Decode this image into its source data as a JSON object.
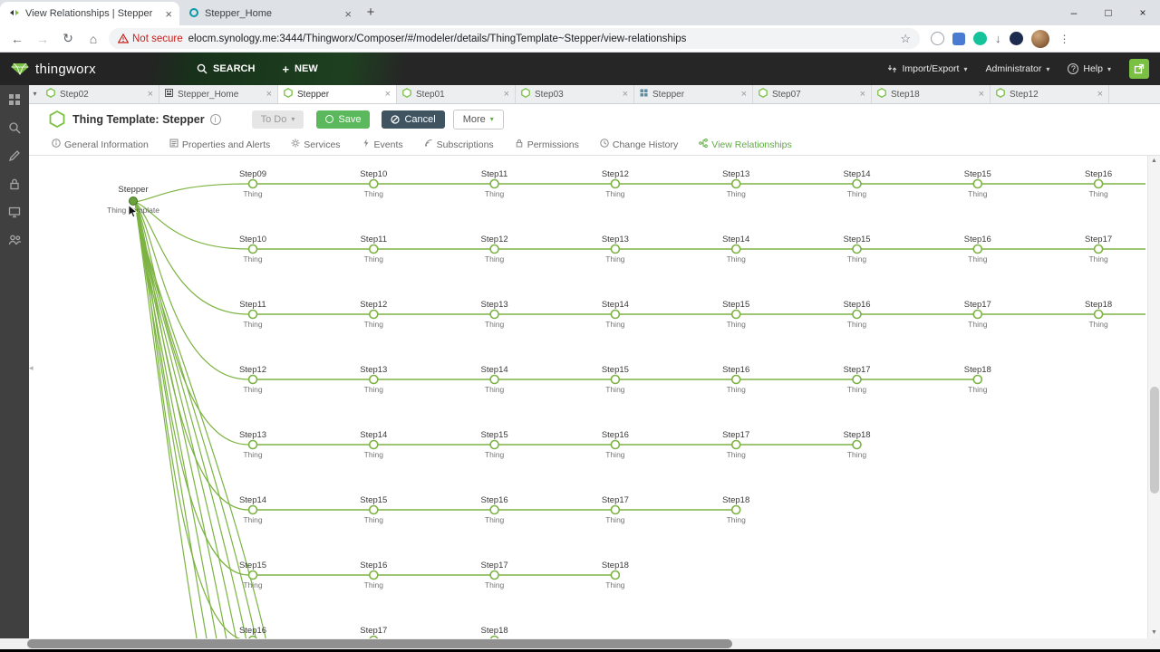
{
  "colors": {
    "accent_green": "#7ac143",
    "graph_line": "#7cb342",
    "save_green": "#5cb85c",
    "cancel_dark": "#3f5361",
    "not_secure_red": "#c5221f",
    "active_nav_green": "#5fad41"
  },
  "browser": {
    "tabs": [
      {
        "title": "View Relationships | Stepper"
      },
      {
        "title": "Stepper_Home"
      }
    ],
    "security_label": "Not secure",
    "url": "elocm.synology.me:3444/Thingworx/Composer/#/modeler/details/ThingTemplate~Stepper/view-relationships"
  },
  "header": {
    "brand": "thingworx",
    "search_label": "SEARCH",
    "new_label": "NEW",
    "import_export": "Import/Export",
    "user": "Administrator",
    "help": "Help"
  },
  "workspace_tabs": {
    "items": [
      {
        "label": "Step02",
        "icon": "thing"
      },
      {
        "label": "Stepper_Home",
        "icon": "mashup"
      },
      {
        "label": "Stepper",
        "icon": "thing",
        "active": true
      },
      {
        "label": "Step01",
        "icon": "thing"
      },
      {
        "label": "Step03",
        "icon": "thing"
      },
      {
        "label": "Stepper",
        "icon": "grid"
      },
      {
        "label": "Step07",
        "icon": "thing"
      },
      {
        "label": "Step18",
        "icon": "thing"
      },
      {
        "label": "Step12",
        "icon": "thing"
      }
    ]
  },
  "entity": {
    "title": "Thing Template: Stepper",
    "status": "To Do",
    "save": "Save",
    "cancel": "Cancel",
    "more": "More"
  },
  "nav": {
    "items": [
      {
        "label": "General Information",
        "icon": "info-icon"
      },
      {
        "label": "Properties and Alerts",
        "icon": "clipboard-icon"
      },
      {
        "label": "Services",
        "icon": "gear-icon"
      },
      {
        "label": "Events",
        "icon": "lightning-icon"
      },
      {
        "label": "Subscriptions",
        "icon": "signal-icon"
      },
      {
        "label": "Permissions",
        "icon": "lock-icon"
      },
      {
        "label": "Change History",
        "icon": "clock-icon"
      },
      {
        "label": "View Relationships",
        "icon": "network-icon",
        "active": true
      }
    ]
  },
  "sidebar": {
    "items": [
      {
        "icon": "apps-grid-icon"
      },
      {
        "icon": "search-icon"
      },
      {
        "icon": "pencil-icon"
      },
      {
        "icon": "lock-icon"
      },
      {
        "icon": "monitor-icon"
      },
      {
        "icon": "users-icon"
      }
    ]
  },
  "graph": {
    "root": {
      "name": "Stepper",
      "type": "Thing Template"
    },
    "member_type": "Thing",
    "rows": [
      {
        "nodes": [
          "Step09",
          "Step10",
          "Step11",
          "Step12",
          "Step13",
          "Step14",
          "Step15",
          "Step16"
        ],
        "line_extends_right": true
      },
      {
        "nodes": [
          "Step10",
          "Step11",
          "Step12",
          "Step13",
          "Step14",
          "Step15",
          "Step16",
          "Step17"
        ],
        "line_extends_right": true
      },
      {
        "nodes": [
          "Step11",
          "Step12",
          "Step13",
          "Step14",
          "Step15",
          "Step16",
          "Step17",
          "Step18"
        ],
        "line_extends_right": true
      },
      {
        "nodes": [
          "Step12",
          "Step13",
          "Step14",
          "Step15",
          "Step16",
          "Step17",
          "Step18"
        ],
        "line_extends_right": false
      },
      {
        "nodes": [
          "Step13",
          "Step14",
          "Step15",
          "Step16",
          "Step17",
          "Step18"
        ],
        "line_extends_right": false
      },
      {
        "nodes": [
          "Step14",
          "Step15",
          "Step16",
          "Step17",
          "Step18"
        ],
        "line_extends_right": false
      },
      {
        "nodes": [
          "Step15",
          "Step16",
          "Step17",
          "Step18"
        ],
        "line_extends_right": false
      },
      {
        "nodes": [
          "Step16",
          "Step17",
          "Step18"
        ],
        "line_extends_right": false,
        "partial": true
      }
    ]
  }
}
